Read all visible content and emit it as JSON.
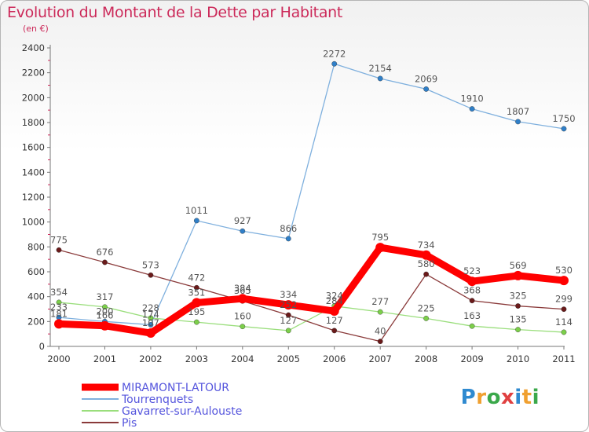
{
  "header": {
    "title": "Evolution du Montant de la Dette par Habitant",
    "subtitle": "(en €)"
  },
  "logo": {
    "text": "Proxiti",
    "colors": [
      "#2f8ad0",
      "#f0a030",
      "#3aa84a",
      "#e04040",
      "#2f8ad0",
      "#f0a030",
      "#3aa84a"
    ]
  },
  "chart_data": {
    "type": "line",
    "title": "Evolution du Montant de la Dette par Habitant",
    "subtitle": "(en €)",
    "xlabel": "",
    "ylabel": "",
    "categories": [
      "2000",
      "2001",
      "2002",
      "2003",
      "2004",
      "2005",
      "2006",
      "2007",
      "2008",
      "2009",
      "2010",
      "2011"
    ],
    "ylim": [
      0,
      2400
    ],
    "yticks": [
      0,
      200,
      400,
      600,
      800,
      1000,
      1200,
      1400,
      1600,
      1800,
      2000,
      2200,
      2400
    ],
    "grid": false,
    "legend_position": "bottom-left",
    "series": [
      {
        "name": "MIRAMONT-LATOUR",
        "values": [
          181,
          166,
          107,
          351,
          384,
          334,
          284,
          795,
          734,
          523,
          569,
          530
        ],
        "labels": [
          "181",
          "166",
          "107",
          "351",
          "384",
          "334",
          "284",
          "795",
          "734",
          "523",
          "569",
          "530"
        ],
        "color": "#ff0000",
        "marker_color": "#ff0000",
        "text_color": "#5555dd",
        "width": 9
      },
      {
        "name": "Tourrenquets",
        "values": [
          233,
          200,
          174,
          1011,
          927,
          866,
          2272,
          2154,
          2069,
          1910,
          1807,
          1750
        ],
        "labels": [
          "233",
          "200",
          "174",
          "1011",
          "927",
          "866",
          "2272",
          "2154",
          "2069",
          "1910",
          "1807",
          "1750"
        ],
        "color": "#7fb0de",
        "marker_color": "#2f7fc8",
        "text_color": "#5555dd",
        "width": 1.3
      },
      {
        "name": "Gavarret-sur-Aulouste",
        "values": [
          354,
          317,
          228,
          195,
          160,
          127,
          324,
          277,
          225,
          163,
          135,
          114
        ],
        "labels": [
          "354",
          "317",
          "228",
          "195",
          "160",
          "127",
          "324",
          "277",
          "225",
          "163",
          "135",
          "114"
        ],
        "color": "#9ade7c",
        "marker_color": "#7ccf4a",
        "text_color": "#5555dd",
        "width": 1.3
      },
      {
        "name": "Pis",
        "values": [
          775,
          676,
          573,
          472,
          365,
          252,
          127,
          40,
          580,
          368,
          325,
          299
        ],
        "labels": [
          "775",
          "676",
          "573",
          "472",
          "365",
          "252",
          "127",
          "40",
          "580",
          "368",
          "325",
          "299"
        ],
        "color": "#8a3a3a",
        "marker_color": "#6a1a1a",
        "text_color": "#5555dd",
        "width": 1.3
      }
    ]
  }
}
